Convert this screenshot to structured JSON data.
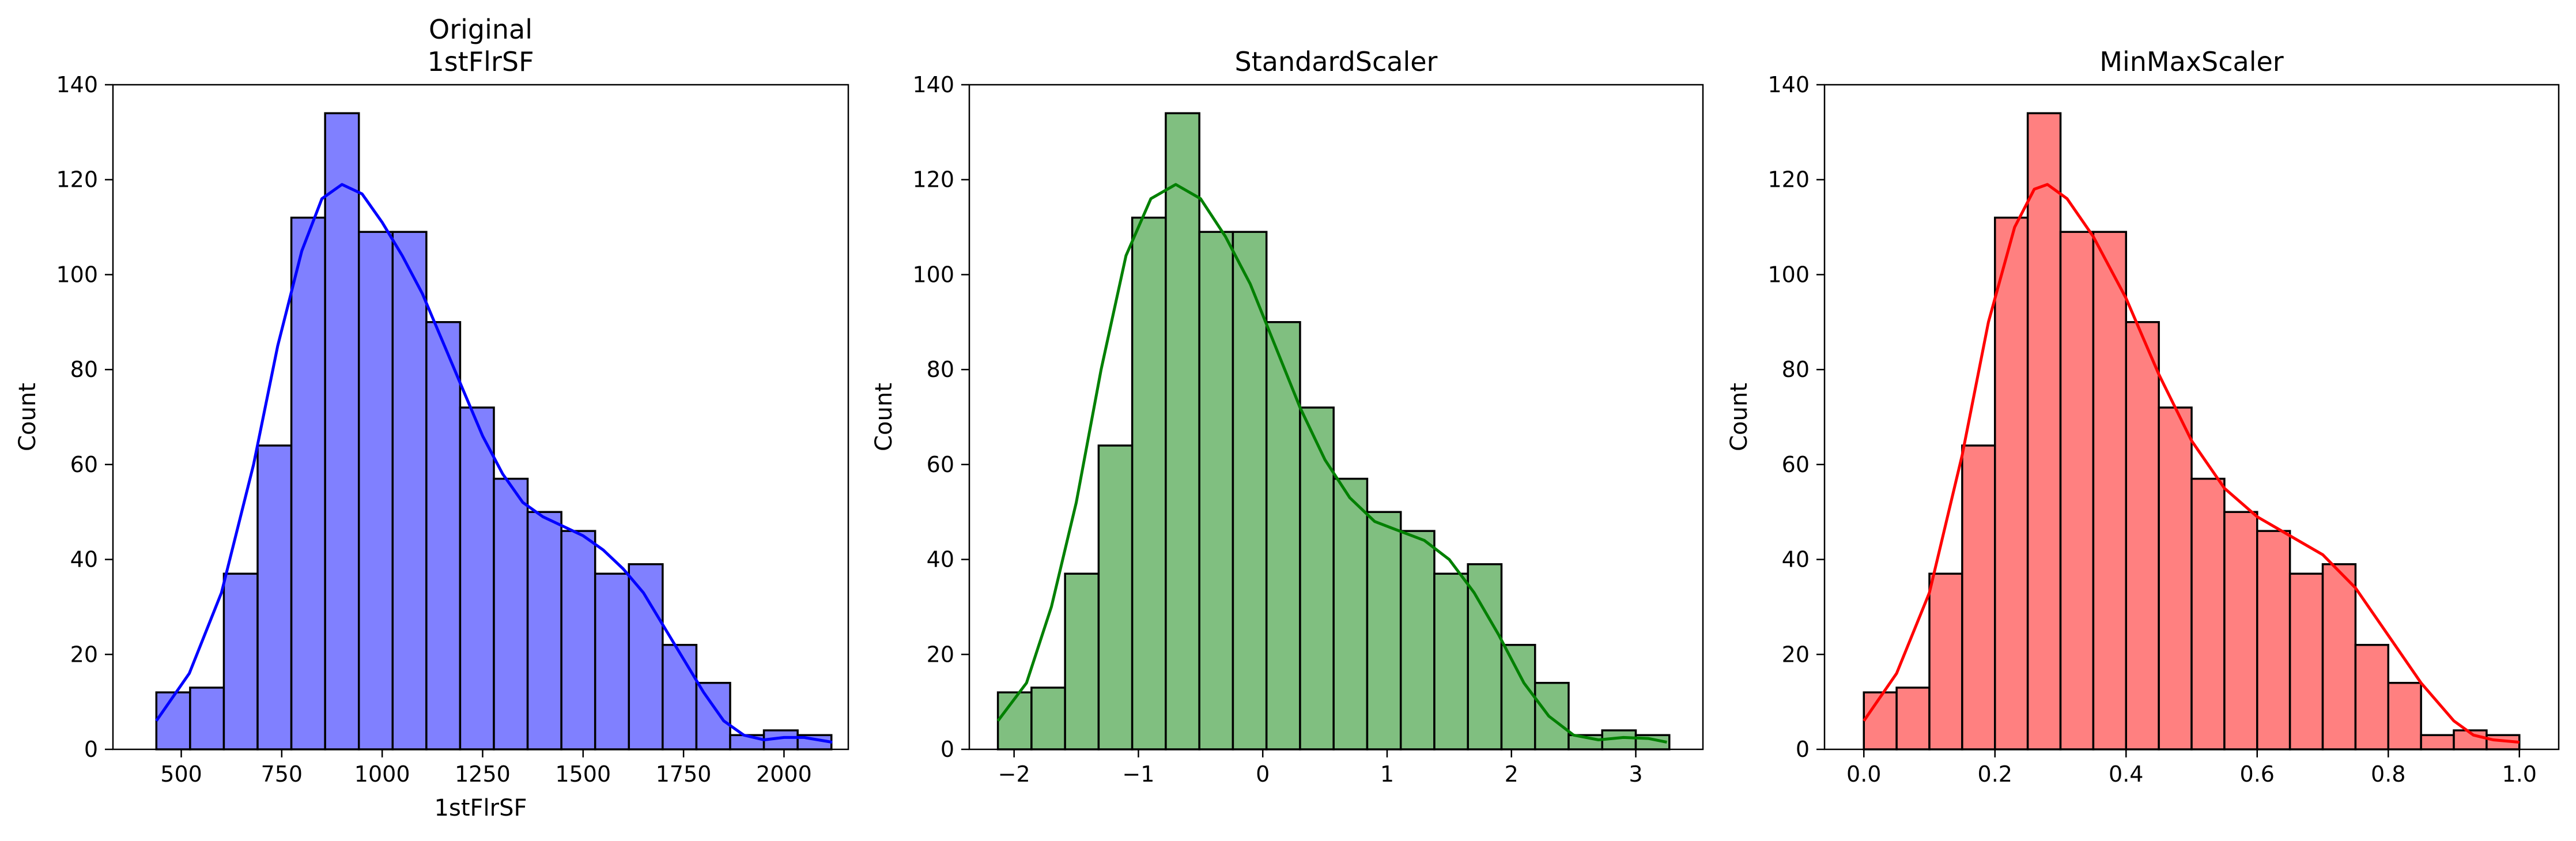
{
  "chart_data": [
    {
      "type": "bar",
      "subtype": "histogram",
      "title_lines": [
        "Original",
        "1stFlrSF"
      ],
      "xlabel": "1stFlrSF",
      "ylabel": "Count",
      "xlim": [
        330,
        2160
      ],
      "ylim": [
        0,
        140
      ],
      "xticks": [
        500,
        750,
        1000,
        1250,
        1500,
        1750,
        2000
      ],
      "xtick_labels": [
        "500",
        "750",
        "1000",
        "1250",
        "1500",
        "1750",
        "2000"
      ],
      "yticks": [
        0,
        20,
        40,
        60,
        80,
        100,
        120,
        140
      ],
      "ytick_labels": [
        "0",
        "20",
        "40",
        "60",
        "80",
        "100",
        "120",
        "140"
      ],
      "bin_start": 438,
      "bin_width": 84,
      "values": [
        12,
        13,
        37,
        64,
        112,
        134,
        109,
        109,
        90,
        72,
        57,
        50,
        46,
        37,
        39,
        22,
        14,
        3,
        4,
        3
      ],
      "kde": [
        [
          438,
          6
        ],
        [
          520,
          16
        ],
        [
          600,
          33
        ],
        [
          680,
          60
        ],
        [
          740,
          85
        ],
        [
          800,
          105
        ],
        [
          850,
          116
        ],
        [
          900,
          119
        ],
        [
          950,
          117
        ],
        [
          1000,
          111
        ],
        [
          1050,
          104
        ],
        [
          1100,
          96
        ],
        [
          1150,
          86
        ],
        [
          1200,
          76
        ],
        [
          1250,
          66
        ],
        [
          1300,
          58
        ],
        [
          1350,
          52
        ],
        [
          1400,
          49
        ],
        [
          1450,
          47
        ],
        [
          1500,
          45
        ],
        [
          1550,
          42
        ],
        [
          1600,
          38
        ],
        [
          1650,
          33
        ],
        [
          1700,
          26
        ],
        [
          1750,
          19
        ],
        [
          1800,
          12
        ],
        [
          1850,
          6
        ],
        [
          1900,
          3
        ],
        [
          1950,
          2
        ],
        [
          2000,
          2.5
        ],
        [
          2050,
          2.5
        ],
        [
          2120,
          1.5
        ]
      ],
      "colors": {
        "bar": "#8080ff",
        "edge": "#000000",
        "kde": "#0000ff"
      }
    },
    {
      "type": "bar",
      "subtype": "histogram",
      "title_lines": [
        "StandardScaler"
      ],
      "xlabel": "",
      "ylabel": "Count",
      "xlim": [
        -2.36,
        3.54
      ],
      "ylim": [
        0,
        140
      ],
      "xticks": [
        -2,
        -1,
        0,
        1,
        2,
        3
      ],
      "xtick_labels": [
        "−2",
        "−1",
        "0",
        "1",
        "2",
        "3"
      ],
      "yticks": [
        0,
        20,
        40,
        60,
        80,
        100,
        120,
        140
      ],
      "ytick_labels": [
        "0",
        "20",
        "40",
        "60",
        "80",
        "100",
        "120",
        "140"
      ],
      "bin_start": -2.13,
      "bin_width": 0.27,
      "values": [
        12,
        13,
        37,
        64,
        112,
        134,
        109,
        109,
        90,
        72,
        57,
        50,
        46,
        37,
        39,
        22,
        14,
        3,
        4,
        3
      ],
      "kde": [
        [
          -2.13,
          6
        ],
        [
          -1.9,
          14
        ],
        [
          -1.7,
          30
        ],
        [
          -1.5,
          52
        ],
        [
          -1.3,
          80
        ],
        [
          -1.1,
          104
        ],
        [
          -0.9,
          116
        ],
        [
          -0.7,
          119
        ],
        [
          -0.5,
          116
        ],
        [
          -0.3,
          108
        ],
        [
          -0.1,
          98
        ],
        [
          0.1,
          85
        ],
        [
          0.3,
          72
        ],
        [
          0.5,
          61
        ],
        [
          0.7,
          53
        ],
        [
          0.9,
          48
        ],
        [
          1.1,
          46
        ],
        [
          1.3,
          44
        ],
        [
          1.5,
          40
        ],
        [
          1.7,
          33
        ],
        [
          1.9,
          24
        ],
        [
          2.1,
          14
        ],
        [
          2.3,
          7
        ],
        [
          2.5,
          3
        ],
        [
          2.7,
          2
        ],
        [
          2.9,
          2.5
        ],
        [
          3.1,
          2.3
        ],
        [
          3.25,
          1.5
        ]
      ],
      "colors": {
        "bar": "#80bf80",
        "edge": "#000000",
        "kde": "#008000"
      }
    },
    {
      "type": "bar",
      "subtype": "histogram",
      "title_lines": [
        "MinMaxScaler"
      ],
      "xlabel": "",
      "ylabel": "Count",
      "xlim": [
        -0.06,
        1.06
      ],
      "ylim": [
        0,
        140
      ],
      "xticks": [
        0.0,
        0.2,
        0.4,
        0.6,
        0.8,
        1.0
      ],
      "xtick_labels": [
        "0.0",
        "0.2",
        "0.4",
        "0.6",
        "0.8",
        "1.0"
      ],
      "yticks": [
        0,
        20,
        40,
        60,
        80,
        100,
        120,
        140
      ],
      "ytick_labels": [
        "0",
        "20",
        "40",
        "60",
        "80",
        "100",
        "120",
        "140"
      ],
      "bin_start": 0.0,
      "bin_width": 0.05,
      "values": [
        12,
        13,
        37,
        64,
        112,
        134,
        109,
        109,
        90,
        72,
        57,
        50,
        46,
        37,
        39,
        22,
        14,
        3,
        4,
        3
      ],
      "kde": [
        [
          0.0,
          6
        ],
        [
          0.05,
          16
        ],
        [
          0.1,
          33
        ],
        [
          0.15,
          62
        ],
        [
          0.19,
          90
        ],
        [
          0.23,
          110
        ],
        [
          0.26,
          118
        ],
        [
          0.28,
          119
        ],
        [
          0.31,
          116
        ],
        [
          0.35,
          108
        ],
        [
          0.4,
          95
        ],
        [
          0.45,
          79
        ],
        [
          0.5,
          65
        ],
        [
          0.55,
          55
        ],
        [
          0.6,
          49
        ],
        [
          0.65,
          45
        ],
        [
          0.7,
          41
        ],
        [
          0.75,
          34
        ],
        [
          0.8,
          24
        ],
        [
          0.85,
          14
        ],
        [
          0.9,
          6
        ],
        [
          0.93,
          3
        ],
        [
          0.96,
          2
        ],
        [
          1.0,
          1.5
        ]
      ],
      "colors": {
        "bar": "#ff8080",
        "edge": "#000000",
        "kde": "#ff0000"
      }
    }
  ]
}
